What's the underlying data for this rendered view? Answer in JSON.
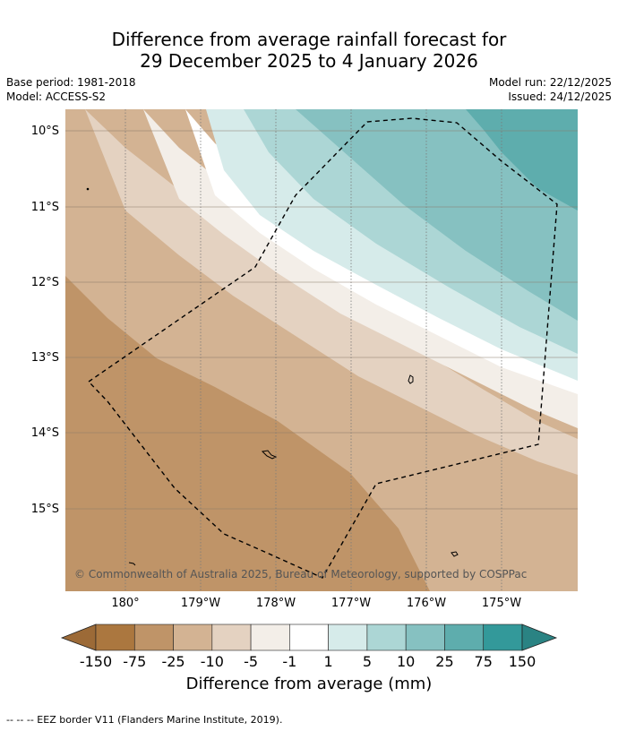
{
  "title": {
    "line1": "Difference from average rainfall forecast for",
    "line2": "29 December 2025 to 4 January 2026"
  },
  "meta": {
    "base_period": "Base period: 1981-2018",
    "model": "Model: ACCESS-S2",
    "model_run": "Model run: 22/12/2025",
    "issued": "Issued: 24/12/2025"
  },
  "map": {
    "lat_labels": [
      "10°S",
      "11°S",
      "12°S",
      "13°S",
      "14°S",
      "15°S"
    ],
    "lon_labels": [
      "180°",
      "179°W",
      "178°W",
      "177°W",
      "176°W",
      "175°W"
    ],
    "copyright": "© Commonwealth of Australia 2025, Bureau of Meteorology, supported by COSPPac"
  },
  "colorbar": {
    "title": "Difference from average (mm)",
    "ticks": [
      "-150",
      "-75",
      "-25",
      "-10",
      "-5",
      "-1",
      "1",
      "5",
      "10",
      "25",
      "75",
      "150"
    ],
    "colors": {
      "below_min": "#9c6a37",
      "bins": [
        "#ab773f",
        "#bf9468",
        "#d3b393",
        "#e4d2c1",
        "#f3eee8",
        "#ffffff",
        "#d6ebea",
        "#acd6d5",
        "#86c1c1",
        "#5eadad",
        "#33999a"
      ],
      "above_max": "#2a8383"
    }
  },
  "footnote": "-- -- -- EEZ border V11 (Flanders Marine Institute, 2019)."
}
